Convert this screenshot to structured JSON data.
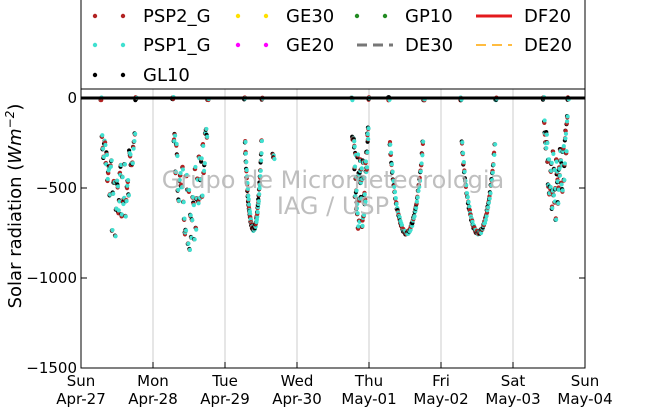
{
  "chart_data": {
    "type": "scatter",
    "ylabel": "Solar radiation",
    "ylabel_unit_base": "Wm",
    "ylabel_unit_exp": "−2",
    "ylim": [
      -1500,
      50
    ],
    "yticks": [
      0,
      -500,
      -1000,
      -1500
    ],
    "ytick_labels": [
      "0",
      "−500",
      "−1000",
      "−1500"
    ],
    "xlim": [
      0,
      7
    ],
    "xticks": [
      {
        "x": 0,
        "day": "Sun",
        "date": "Apr-27"
      },
      {
        "x": 1,
        "day": "Mon",
        "date": "Apr-28"
      },
      {
        "x": 2,
        "day": "Tue",
        "date": "Apr-29"
      },
      {
        "x": 3,
        "day": "Wed",
        "date": "Apr-30"
      },
      {
        "x": 4,
        "day": "Thu",
        "date": "May-01"
      },
      {
        "x": 5,
        "day": "Fri",
        "date": "May-02"
      },
      {
        "x": 6,
        "day": "Sat",
        "date": "May-03"
      },
      {
        "x": 7,
        "day": "Sun",
        "date": "May-04"
      }
    ],
    "grid": "vertical",
    "zero_line": true,
    "legend": {
      "placement": "top",
      "entries": [
        {
          "name": "PSP2_G",
          "style": "dot",
          "color": "#b22222"
        },
        {
          "name": "GE30",
          "style": "dot",
          "color": "#ffe000"
        },
        {
          "name": "GP10",
          "style": "dot",
          "color": "#228b22"
        },
        {
          "name": "DF20",
          "style": "line",
          "color": "#e31a1c"
        },
        {
          "name": "PSP1_G",
          "style": "dot",
          "color": "#40e0d0"
        },
        {
          "name": "GE20",
          "style": "dot",
          "color": "#ff00ff"
        },
        {
          "name": "DE30",
          "style": "dash",
          "color": "#777777"
        },
        {
          "name": "DE20",
          "style": "dash",
          "color": "#ffa500"
        },
        {
          "name": "GL10",
          "style": "dot",
          "color": "#000000"
        }
      ]
    },
    "series_colors": {
      "PSP2_G": "#b22222",
      "PSP1_G": "#40e0d0",
      "GL10": "#000000"
    },
    "days": [
      {
        "start": 0.27,
        "end": 0.77,
        "min": -820,
        "spiky": true,
        "label": "Apr-27"
      },
      {
        "start": 1.27,
        "end": 1.77,
        "min": -860,
        "spiky": true,
        "label": "Apr-28"
      },
      {
        "start": 2.27,
        "end": 2.52,
        "min": -730,
        "spiky": false,
        "label": "Apr-29"
      },
      {
        "start": 3.76,
        "end": 4.0,
        "min": -760,
        "spiky": true,
        "label": "Apr-30"
      },
      {
        "start": 4.27,
        "end": 4.77,
        "min": -750,
        "spiky": false,
        "label": "May-01"
      },
      {
        "start": 5.27,
        "end": 5.77,
        "min": -750,
        "spiky": false,
        "label": "May-02"
      },
      {
        "start": 6.42,
        "end": 6.77,
        "min": -680,
        "spiky": true,
        "label": "May-03"
      }
    ],
    "isolated_points": [
      {
        "x": 2.66,
        "y": -310
      },
      {
        "x": 2.67,
        "y": -330
      }
    ],
    "watermark": [
      "Grupo de Micrometeorologia",
      "IAG / USP"
    ]
  }
}
